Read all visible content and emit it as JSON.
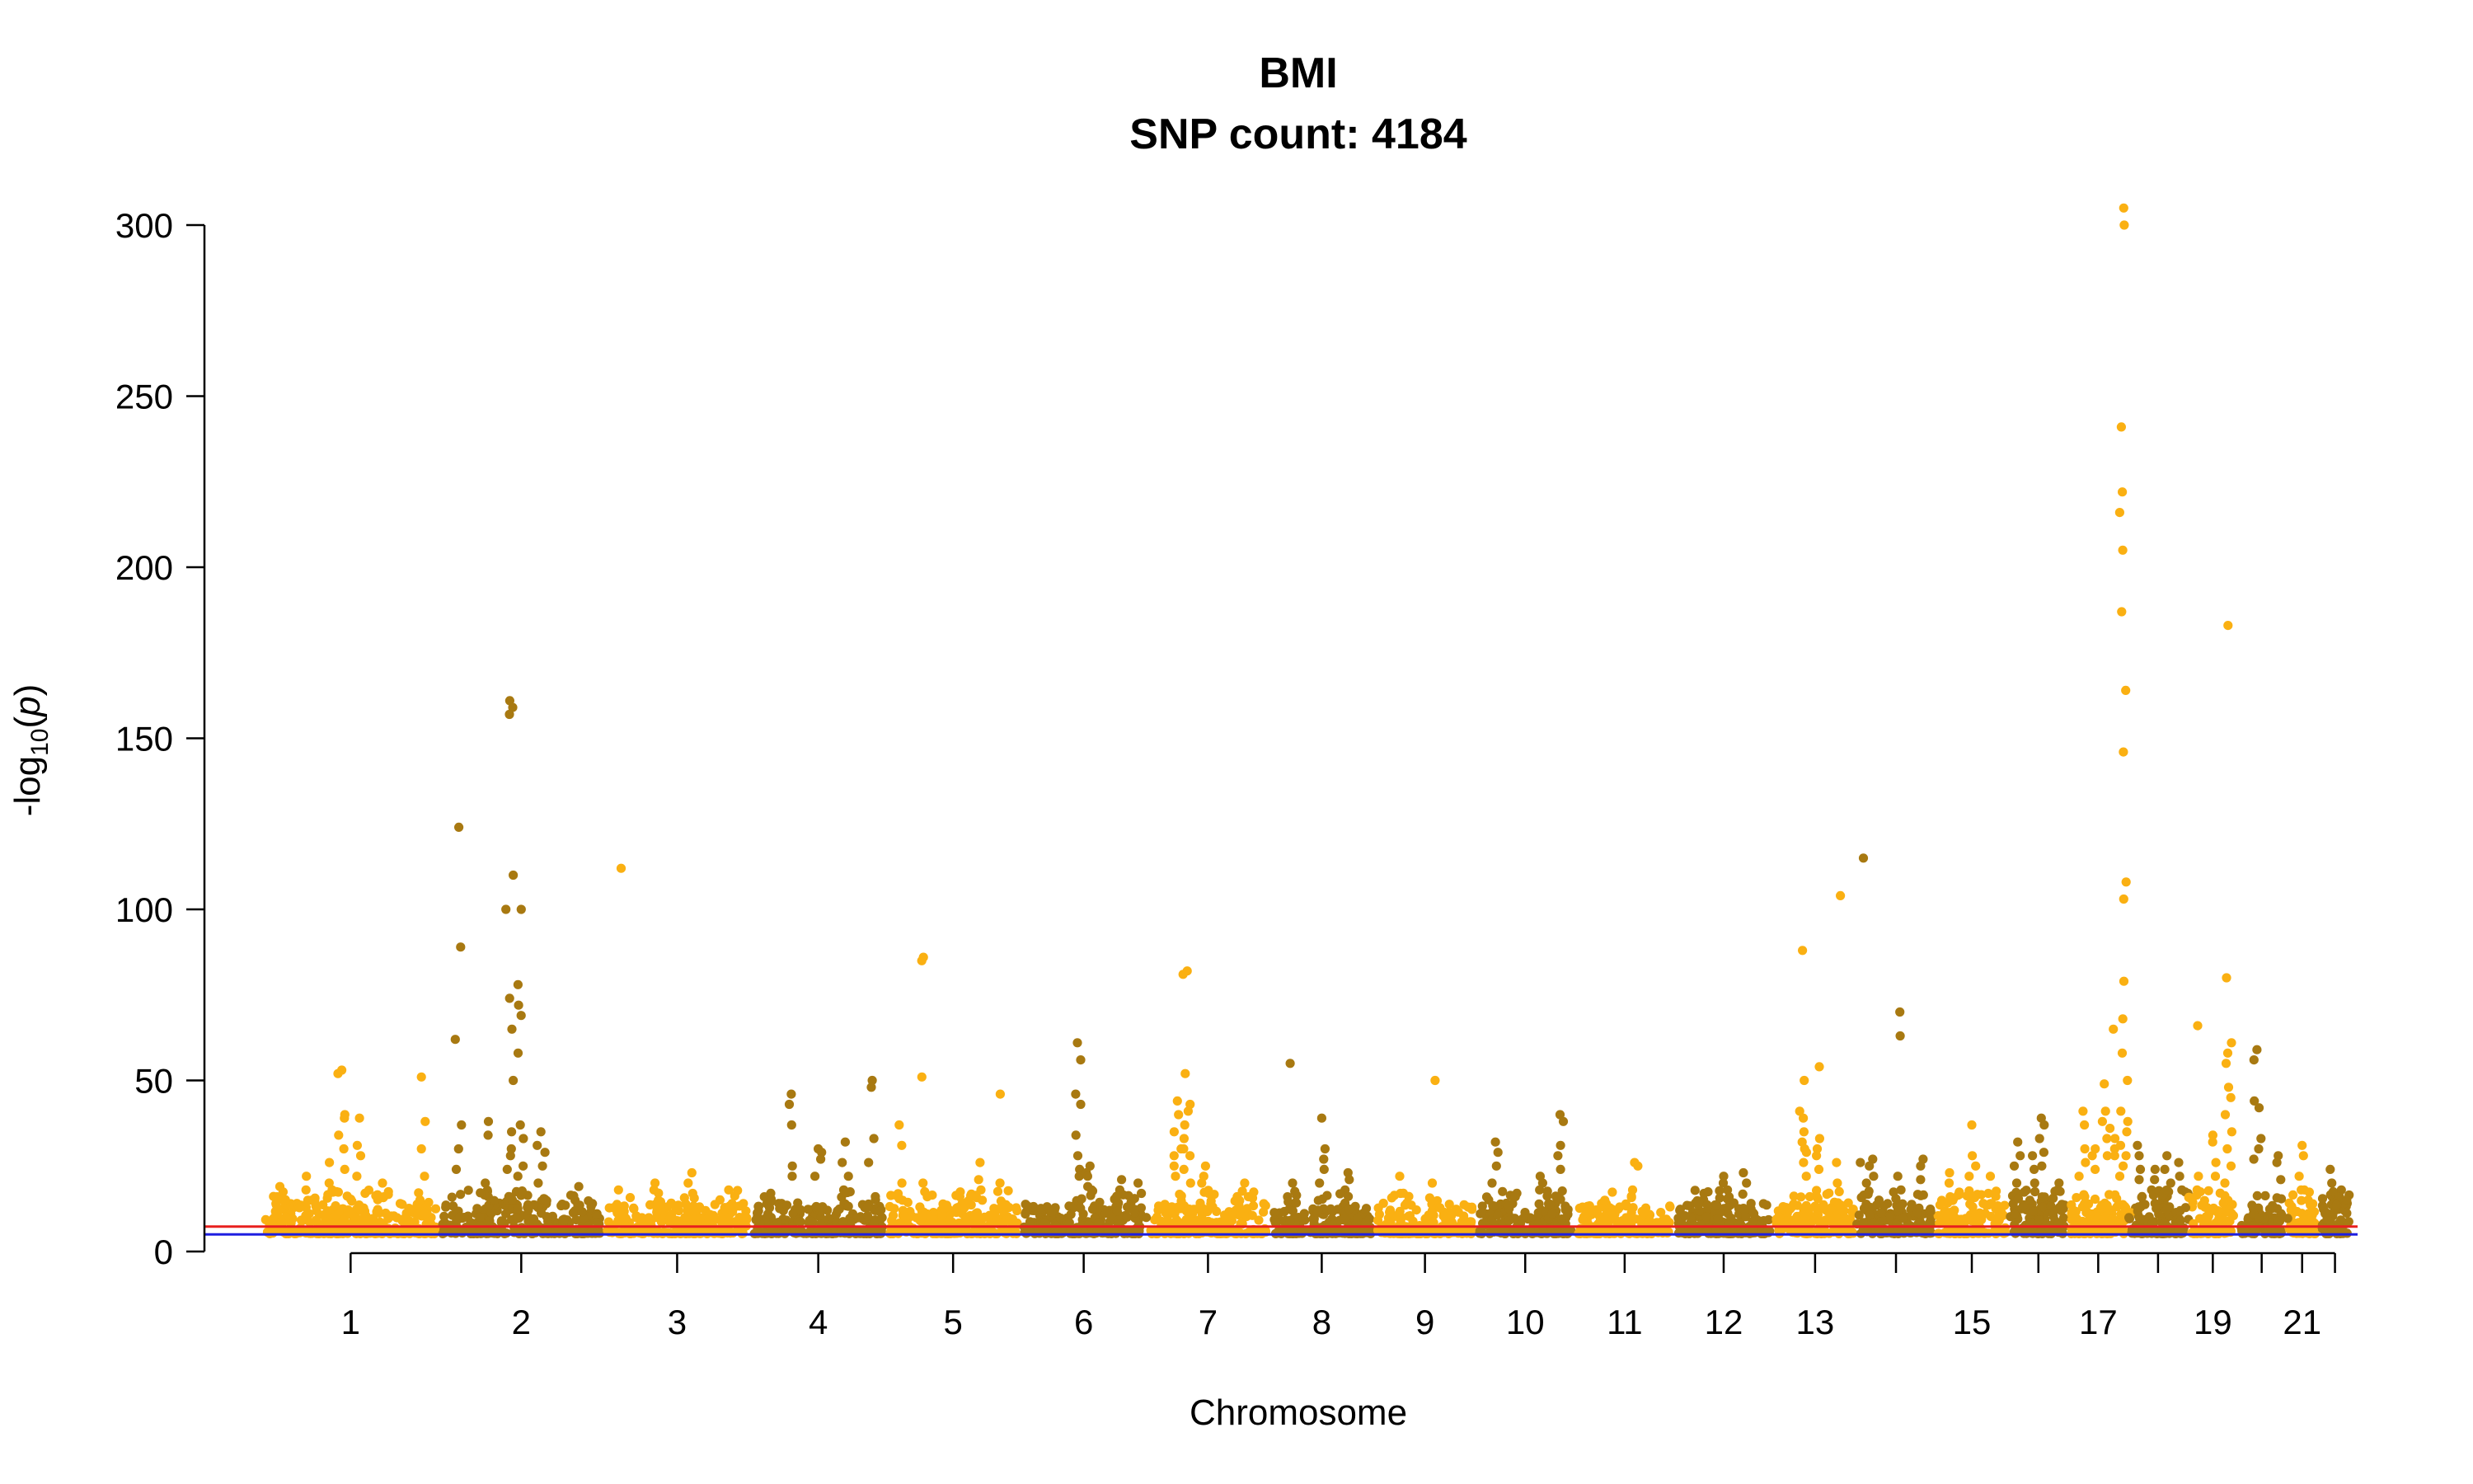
{
  "chart_data": {
    "type": "scatter",
    "title": "BMI",
    "subtitle": "SNP count: 4184",
    "xlabel": "Chromosome",
    "ylabel": {
      "prefix": "-log",
      "sub": "10",
      "open": "(",
      "italic": "p",
      "close": ")"
    },
    "ylim": [
      0,
      300
    ],
    "yticks": [
      0,
      50,
      100,
      150,
      200,
      250,
      300
    ],
    "grid": false,
    "legend": "none",
    "colors": {
      "odd": "#FAB012",
      "even": "#A87911"
    },
    "thresholds": [
      {
        "value": 7.3,
        "color": "#E8201E"
      },
      {
        "value": 5.0,
        "color": "#1E1EE0"
      }
    ],
    "chromosomes": [
      {
        "chr": 1,
        "label": "1"
      },
      {
        "chr": 2,
        "label": "2"
      },
      {
        "chr": 3,
        "label": "3"
      },
      {
        "chr": 4,
        "label": "4"
      },
      {
        "chr": 5,
        "label": "5"
      },
      {
        "chr": 6,
        "label": "6"
      },
      {
        "chr": 7,
        "label": "7"
      },
      {
        "chr": 8,
        "label": "8"
      },
      {
        "chr": 9,
        "label": "9"
      },
      {
        "chr": 10,
        "label": "10"
      },
      {
        "chr": 11,
        "label": "11"
      },
      {
        "chr": 12,
        "label": "12"
      },
      {
        "chr": 13,
        "label": "13"
      },
      {
        "chr": 14,
        "label": ""
      },
      {
        "chr": 15,
        "label": "15"
      },
      {
        "chr": 16,
        "label": ""
      },
      {
        "chr": 17,
        "label": "17"
      },
      {
        "chr": 18,
        "label": ""
      },
      {
        "chr": 19,
        "label": "19"
      },
      {
        "chr": 20,
        "label": ""
      },
      {
        "chr": 21,
        "label": "21"
      },
      {
        "chr": 22,
        "label": ""
      }
    ],
    "peaks": [
      {
        "chr": 1,
        "pos": 0.1,
        "values": [
          19,
          16,
          14
        ]
      },
      {
        "chr": 1,
        "pos": 0.25,
        "values": [
          22,
          18,
          15
        ]
      },
      {
        "chr": 1,
        "pos": 0.38,
        "values": [
          26,
          20,
          18
        ]
      },
      {
        "chr": 1,
        "pos": 0.45,
        "values": [
          53,
          52,
          40,
          39,
          34,
          30,
          24
        ]
      },
      {
        "chr": 1,
        "pos": 0.55,
        "values": [
          39,
          31,
          28,
          22
        ]
      },
      {
        "chr": 1,
        "pos": 0.68,
        "values": [
          20,
          16
        ]
      },
      {
        "chr": 1,
        "pos": 0.9,
        "values": [
          51,
          38,
          30,
          22
        ]
      },
      {
        "chr": 2,
        "pos": 0.12,
        "values": [
          124,
          89,
          62,
          37,
          30,
          24
        ]
      },
      {
        "chr": 2,
        "pos": 0.3,
        "values": [
          38,
          34,
          20,
          16
        ]
      },
      {
        "chr": 2,
        "pos": 0.43,
        "values": [
          161,
          159,
          157,
          110,
          100,
          74,
          65,
          50,
          35,
          30,
          28,
          24
        ]
      },
      {
        "chr": 2,
        "pos": 0.5,
        "values": [
          100,
          78,
          72,
          69,
          58,
          37,
          33,
          25,
          22
        ]
      },
      {
        "chr": 2,
        "pos": 0.62,
        "values": [
          35,
          31,
          29,
          25,
          20
        ]
      },
      {
        "chr": 2,
        "pos": 0.85,
        "values": [
          19,
          15
        ]
      },
      {
        "chr": 3,
        "pos": 0.12,
        "values": [
          112,
          18
        ]
      },
      {
        "chr": 3,
        "pos": 0.35,
        "values": [
          20,
          18,
          15
        ]
      },
      {
        "chr": 3,
        "pos": 0.6,
        "values": [
          23,
          20,
          17
        ]
      },
      {
        "chr": 3,
        "pos": 0.85,
        "values": [
          18,
          14
        ]
      },
      {
        "chr": 4,
        "pos": 0.1,
        "values": [
          16,
          14
        ]
      },
      {
        "chr": 4,
        "pos": 0.3,
        "values": [
          46,
          43,
          37,
          25,
          22
        ]
      },
      {
        "chr": 4,
        "pos": 0.5,
        "values": [
          30,
          29,
          27,
          22
        ]
      },
      {
        "chr": 4,
        "pos": 0.7,
        "values": [
          32,
          26,
          22,
          18
        ]
      },
      {
        "chr": 4,
        "pos": 0.9,
        "values": [
          50,
          48,
          33,
          26
        ]
      },
      {
        "chr": 5,
        "pos": 0.1,
        "values": [
          37,
          31,
          20,
          15
        ]
      },
      {
        "chr": 5,
        "pos": 0.28,
        "values": [
          86,
          85,
          51,
          20,
          16
        ]
      },
      {
        "chr": 5,
        "pos": 0.55,
        "values": [
          16,
          14
        ]
      },
      {
        "chr": 5,
        "pos": 0.7,
        "values": [
          26,
          21,
          18
        ]
      },
      {
        "chr": 5,
        "pos": 0.85,
        "values": [
          46,
          20
        ]
      },
      {
        "chr": 6,
        "pos": 0.45,
        "values": [
          61,
          56,
          46,
          43,
          34,
          28,
          24,
          22
        ]
      },
      {
        "chr": 6,
        "pos": 0.55,
        "values": [
          25,
          23,
          22,
          19
        ]
      },
      {
        "chr": 6,
        "pos": 0.8,
        "values": [
          21,
          18
        ]
      },
      {
        "chr": 6,
        "pos": 0.93,
        "values": [
          20,
          17
        ]
      },
      {
        "chr": 7,
        "pos": 0.25,
        "values": [
          44,
          40,
          35,
          30,
          28,
          25,
          22
        ]
      },
      {
        "chr": 7,
        "pos": 0.33,
        "values": [
          82,
          81,
          52,
          43,
          41,
          37,
          33,
          30,
          28,
          24,
          20
        ]
      },
      {
        "chr": 7,
        "pos": 0.48,
        "values": [
          25,
          22,
          20,
          17
        ]
      },
      {
        "chr": 7,
        "pos": 0.8,
        "values": [
          20,
          16
        ]
      },
      {
        "chr": 8,
        "pos": 0.2,
        "values": [
          55,
          20,
          16
        ]
      },
      {
        "chr": 8,
        "pos": 0.5,
        "values": [
          39,
          30,
          27,
          24,
          20
        ]
      },
      {
        "chr": 8,
        "pos": 0.75,
        "values": [
          23,
          21,
          18
        ]
      },
      {
        "chr": 9,
        "pos": 0.25,
        "values": [
          22,
          17
        ]
      },
      {
        "chr": 9,
        "pos": 0.6,
        "values": [
          50,
          20,
          14
        ]
      },
      {
        "chr": 10,
        "pos": 0.2,
        "values": [
          32,
          29,
          25,
          20
        ]
      },
      {
        "chr": 10,
        "pos": 0.4,
        "values": [
          16,
          14
        ]
      },
      {
        "chr": 10,
        "pos": 0.65,
        "values": [
          22,
          20,
          18
        ]
      },
      {
        "chr": 10,
        "pos": 0.85,
        "values": [
          40,
          38,
          31,
          28,
          24
        ]
      },
      {
        "chr": 11,
        "pos": 0.3,
        "values": [
          15,
          13
        ]
      },
      {
        "chr": 11,
        "pos": 0.6,
        "values": [
          26,
          25,
          18
        ]
      },
      {
        "chr": 12,
        "pos": 0.3,
        "values": [
          17,
          15
        ]
      },
      {
        "chr": 12,
        "pos": 0.5,
        "values": [
          22,
          20,
          18
        ]
      },
      {
        "chr": 12,
        "pos": 0.7,
        "values": [
          23,
          20
        ]
      },
      {
        "chr": 13,
        "pos": 0.35,
        "values": [
          88,
          50,
          41,
          39,
          35,
          32,
          30,
          29,
          26,
          22
        ]
      },
      {
        "chr": 13,
        "pos": 0.55,
        "values": [
          54,
          33,
          30,
          28,
          24
        ]
      },
      {
        "chr": 13,
        "pos": 0.8,
        "values": [
          104,
          26,
          20
        ]
      },
      {
        "chr": 14,
        "pos": 0.08,
        "values": [
          115,
          26,
          20
        ]
      },
      {
        "chr": 14,
        "pos": 0.2,
        "values": [
          27,
          25,
          22
        ]
      },
      {
        "chr": 14,
        "pos": 0.55,
        "values": [
          70,
          63,
          22,
          18
        ]
      },
      {
        "chr": 14,
        "pos": 0.85,
        "values": [
          27,
          25,
          21
        ]
      },
      {
        "chr": 15,
        "pos": 0.2,
        "values": [
          23,
          20,
          16
        ]
      },
      {
        "chr": 15,
        "pos": 0.5,
        "values": [
          37,
          28,
          25,
          22
        ]
      },
      {
        "chr": 15,
        "pos": 0.75,
        "values": [
          22,
          17
        ]
      },
      {
        "chr": 16,
        "pos": 0.15,
        "values": [
          32,
          28,
          25,
          20
        ]
      },
      {
        "chr": 16,
        "pos": 0.4,
        "values": [
          28,
          24,
          20
        ]
      },
      {
        "chr": 16,
        "pos": 0.55,
        "values": [
          39,
          37,
          33,
          29,
          25
        ]
      },
      {
        "chr": 16,
        "pos": 0.85,
        "values": [
          20,
          18
        ]
      },
      {
        "chr": 17,
        "pos": 0.25,
        "values": [
          41,
          37,
          30,
          26,
          22
        ]
      },
      {
        "chr": 17,
        "pos": 0.45,
        "values": [
          30,
          28,
          24
        ]
      },
      {
        "chr": 17,
        "pos": 0.6,
        "values": [
          49,
          41,
          38,
          33,
          28
        ]
      },
      {
        "chr": 17,
        "pos": 0.75,
        "values": [
          65,
          36,
          33,
          30,
          28
        ]
      },
      {
        "chr": 17,
        "pos": 0.92,
        "values": [
          305,
          300,
          241,
          222,
          216,
          205,
          187,
          164,
          146,
          108,
          103,
          79,
          68,
          58,
          50,
          41,
          38,
          35,
          31,
          28,
          25,
          22
        ]
      },
      {
        "chr": 18,
        "pos": 0.15,
        "values": [
          31,
          28,
          24,
          21
        ]
      },
      {
        "chr": 18,
        "pos": 0.45,
        "values": [
          24,
          21,
          18
        ]
      },
      {
        "chr": 18,
        "pos": 0.65,
        "values": [
          28,
          24,
          20
        ]
      },
      {
        "chr": 18,
        "pos": 0.85,
        "values": [
          26,
          22,
          18
        ]
      },
      {
        "chr": 19,
        "pos": 0.2,
        "values": [
          66,
          22,
          18
        ]
      },
      {
        "chr": 19,
        "pos": 0.5,
        "values": [
          34,
          32,
          26,
          22
        ]
      },
      {
        "chr": 19,
        "pos": 0.8,
        "values": [
          183,
          80,
          61,
          58,
          55,
          48,
          45,
          40,
          35,
          30,
          25,
          20
        ]
      },
      {
        "chr": 20,
        "pos": 0.4,
        "values": [
          59,
          56,
          44,
          42,
          33,
          30,
          27
        ]
      },
      {
        "chr": 20,
        "pos": 0.85,
        "values": [
          28,
          26,
          21
        ]
      },
      {
        "chr": 21,
        "pos": 0.5,
        "values": [
          31,
          28,
          22,
          18
        ]
      },
      {
        "chr": 22,
        "pos": 0.35,
        "values": [
          24,
          20,
          16
        ]
      },
      {
        "chr": 22,
        "pos": 0.7,
        "values": [
          18,
          16,
          14
        ]
      }
    ]
  }
}
